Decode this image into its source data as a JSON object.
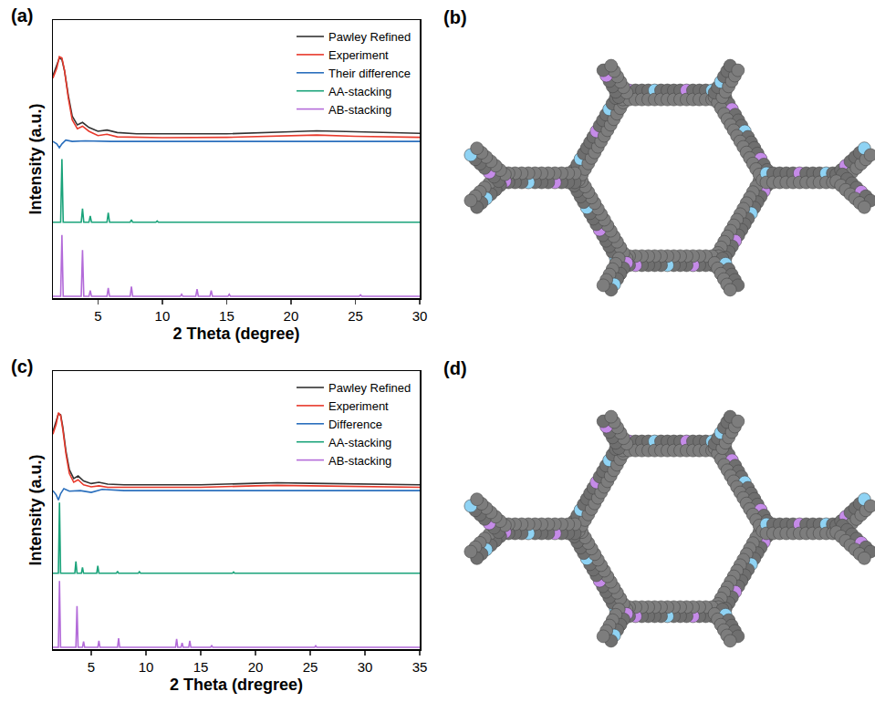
{
  "chart_data": [
    {
      "type": "line",
      "title": "(a)",
      "x_label": "2 Theta (degree)",
      "y_label": "Intensity (a.u.)",
      "xlim": [
        1.5,
        30
      ],
      "xticks": [
        5,
        10,
        15,
        20,
        25,
        30
      ],
      "ylim": [
        0,
        110
      ],
      "tick_labels": "x",
      "grid": false,
      "legend": "upper right",
      "series": [
        {
          "name": "Pawley Refined",
          "color": "#333333",
          "x": [
            1.5,
            1.8,
            2.0,
            2.2,
            2.4,
            2.7,
            3.0,
            3.4,
            3.8,
            4.3,
            5.0,
            5.7,
            6.5,
            8,
            10,
            15,
            20,
            22,
            25,
            30
          ],
          "values": [
            88,
            92,
            95,
            94.4,
            90,
            80,
            72,
            68.5,
            69.5,
            67.5,
            66,
            66.5,
            65.5,
            65,
            65,
            65,
            65.8,
            66.2,
            65.8,
            65.2
          ]
        },
        {
          "name": "Experiment",
          "color": "#e8392b",
          "x": [
            1.5,
            1.8,
            2.0,
            2.2,
            2.4,
            2.7,
            3.0,
            3.4,
            3.8,
            4.3,
            5.0,
            5.7,
            6.5,
            8,
            10,
            15,
            20,
            22,
            25,
            30
          ],
          "values": [
            87,
            91,
            95.5,
            95,
            90,
            79,
            70.5,
            67,
            68,
            66,
            64.3,
            64.8,
            63.8,
            63.6,
            63.5,
            63.6,
            64.2,
            64.5,
            64,
            63.6
          ]
        },
        {
          "name": "Their difference",
          "color": "#2a6fbd",
          "x": [
            1.5,
            1.8,
            2.0,
            2.2,
            2.5,
            3,
            4,
            6,
            10,
            20,
            30
          ],
          "values": [
            62,
            61,
            59.5,
            61,
            62.5,
            62,
            62.2,
            62,
            62,
            62,
            62
          ]
        },
        {
          "name": "AA-stacking",
          "color": "#1aa37a",
          "x": [
            1.5,
            2.1,
            2.2,
            2.3,
            3.7,
            3.8,
            3.9,
            4.3,
            4.4,
            4.5,
            5.7,
            5.8,
            5.9,
            7.5,
            7.6,
            7.7,
            9.5,
            9.6,
            9.7,
            30
          ],
          "values": [
            30,
            30,
            55,
            30,
            30,
            35.4,
            30,
            30,
            32.5,
            30,
            30,
            33.8,
            30,
            30,
            31,
            30,
            30,
            30.5,
            30,
            30
          ]
        },
        {
          "name": "AB-stacking",
          "color": "#b36bd9",
          "x": [
            1.5,
            2.1,
            2.2,
            2.3,
            3.7,
            3.8,
            3.9,
            4.3,
            4.4,
            4.5,
            5.7,
            5.8,
            5.9,
            7.5,
            7.6,
            7.7,
            11.4,
            11.5,
            11.6,
            12.6,
            12.7,
            12.8,
            13.7,
            13.8,
            13.9,
            15.1,
            15.2,
            15.3,
            25.3,
            25.4,
            25.5,
            30
          ],
          "values": [
            0.7,
            0.7,
            25,
            0.7,
            0.7,
            19,
            0.7,
            0.7,
            3,
            0.7,
            0.7,
            4,
            0.7,
            0.7,
            4.6,
            0.7,
            0.7,
            1.5,
            0.7,
            0.7,
            3.6,
            0.7,
            0.7,
            3,
            0.7,
            0.7,
            1.5,
            0.7,
            0.7,
            1.3,
            0.7,
            0.7
          ]
        }
      ]
    },
    {
      "type": "line",
      "title": "(c)",
      "x_label": "2 Theta (dregree)",
      "y_label": "Intensity (a.u.)",
      "xlim": [
        1.5,
        35
      ],
      "xticks": [
        5,
        10,
        15,
        20,
        25,
        30,
        35
      ],
      "ylim": [
        0,
        110
      ],
      "tick_labels": "x",
      "grid": false,
      "legend": "upper right",
      "series": [
        {
          "name": "Pawley Refined",
          "color": "#333333",
          "x": [
            1.5,
            1.8,
            2.0,
            2.2,
            2.4,
            2.7,
            3.0,
            3.4,
            3.8,
            4.3,
            5.0,
            5.7,
            6.5,
            8,
            10,
            15,
            20,
            22,
            25,
            30,
            35
          ],
          "values": [
            86,
            90,
            93,
            92.7,
            88,
            78,
            71,
            67.5,
            68.5,
            66.5,
            65.5,
            66,
            65.3,
            65,
            65,
            65,
            65.6,
            65.8,
            65.6,
            65.3,
            65
          ]
        },
        {
          "name": "Experiment",
          "color": "#e8392b",
          "x": [
            1.5,
            1.8,
            2.0,
            2.2,
            2.4,
            2.7,
            3.0,
            3.4,
            3.8,
            4.3,
            5.0,
            5.7,
            6.5,
            8,
            10,
            15,
            20,
            22,
            25,
            30,
            35
          ],
          "values": [
            85,
            89,
            93.5,
            92.5,
            87,
            77,
            69.5,
            66,
            67,
            65,
            64.2,
            64.6,
            64,
            64,
            64,
            64,
            64.6,
            64.8,
            64.6,
            64.3,
            64
          ]
        },
        {
          "name": "Difference",
          "color": "#2a6fbd",
          "x": [
            1.5,
            1.8,
            2.0,
            2.2,
            2.5,
            3,
            4,
            5,
            6,
            8,
            12,
            20,
            30,
            35
          ],
          "values": [
            62.7,
            61,
            59,
            61.5,
            63.5,
            62.5,
            62.7,
            62,
            63.2,
            62.7,
            62.7,
            62.7,
            62.7,
            62.7
          ]
        },
        {
          "name": "AA-stacking",
          "color": "#1aa37a",
          "x": [
            1.5,
            2.0,
            2.1,
            2.2,
            3.5,
            3.6,
            3.7,
            4.1,
            4.2,
            4.3,
            5.5,
            5.6,
            5.7,
            7.3,
            7.4,
            7.5,
            9.3,
            9.4,
            9.5,
            17.9,
            18.0,
            18.1,
            35
          ],
          "values": [
            30,
            30,
            58,
            30,
            30,
            34.7,
            30,
            30,
            32.3,
            30,
            30,
            33,
            30,
            30,
            30.8,
            30,
            30,
            30.6,
            30,
            30,
            30.5,
            30,
            30
          ]
        },
        {
          "name": "AB-stacking",
          "color": "#b36bd9",
          "x": [
            1.5,
            2.0,
            2.1,
            2.2,
            3.6,
            3.7,
            3.8,
            4.2,
            4.3,
            4.4,
            5.6,
            5.7,
            5.8,
            7.4,
            7.5,
            7.6,
            12.7,
            12.8,
            12.9,
            13.2,
            13.3,
            13.4,
            13.9,
            14.0,
            14.1,
            15.9,
            16.0,
            16.1,
            25.4,
            25.5,
            25.6,
            35
          ],
          "values": [
            0.7,
            0.7,
            27,
            0.7,
            0.7,
            17,
            0.7,
            0.7,
            3,
            0.7,
            0.7,
            3.3,
            0.7,
            0.7,
            4.3,
            0.7,
            0.7,
            4,
            0.7,
            0.7,
            2.5,
            0.7,
            0.7,
            3.3,
            0.7,
            0.7,
            1.5,
            0.7,
            0.7,
            1.3,
            0.7,
            0.7
          ]
        }
      ]
    }
  ],
  "images": [
    {
      "label": "(b)"
    },
    {
      "label": "(d)"
    }
  ]
}
